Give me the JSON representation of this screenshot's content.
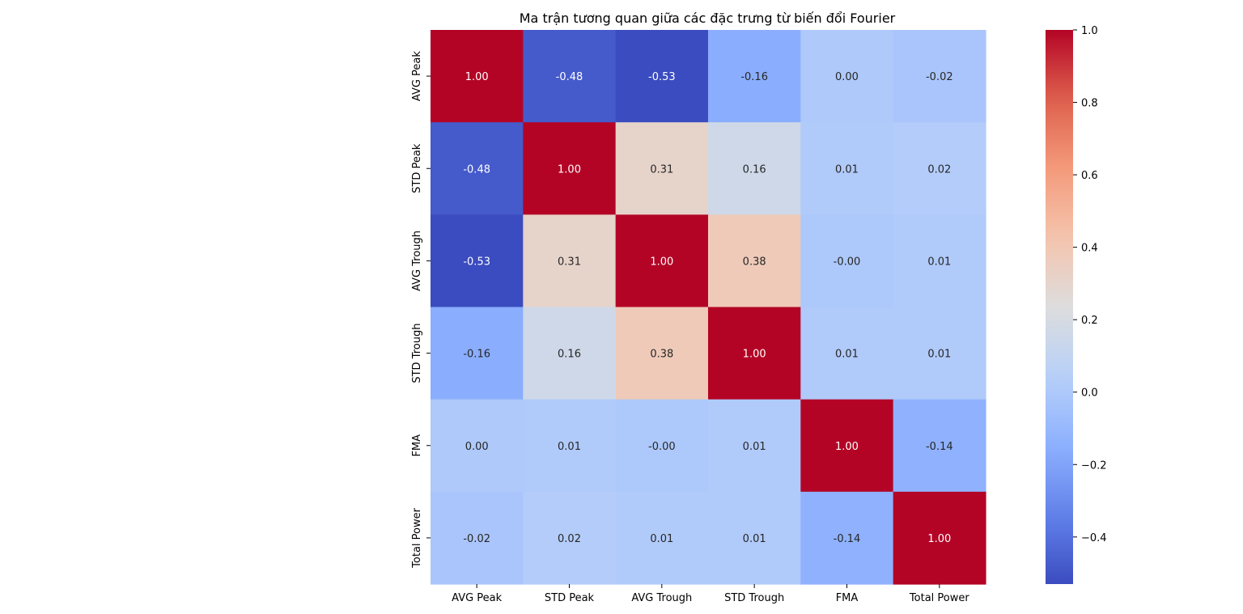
{
  "chart_data": {
    "type": "heatmap",
    "title": "Ma trận tương quan giữa các đặc trưng từ biến đổi Fourier",
    "x_labels": [
      "AVG Peak",
      "STD Peak",
      "AVG Trough",
      "STD Trough",
      "FMA",
      "Total Power"
    ],
    "y_labels": [
      "AVG Peak",
      "STD Peak",
      "AVG Trough",
      "STD Trough",
      "FMA",
      "Total Power"
    ],
    "values": [
      [
        1.0,
        -0.48,
        -0.53,
        -0.16,
        0.0,
        -0.02
      ],
      [
        -0.48,
        1.0,
        0.31,
        0.16,
        0.01,
        0.02
      ],
      [
        -0.53,
        0.31,
        1.0,
        0.38,
        -0.004,
        0.01
      ],
      [
        -0.16,
        0.16,
        0.38,
        1.0,
        0.01,
        0.01
      ],
      [
        0.0,
        0.01,
        -0.004,
        0.01,
        1.0,
        -0.14
      ],
      [
        -0.02,
        0.02,
        0.01,
        0.01,
        -0.14,
        1.0
      ]
    ],
    "cell_labels": [
      [
        "1.00",
        "-0.48",
        "-0.53",
        "-0.16",
        "0.00",
        "-0.02"
      ],
      [
        "-0.48",
        "1.00",
        "0.31",
        "0.16",
        "0.01",
        "0.02"
      ],
      [
        "-0.53",
        "0.31",
        "1.00",
        "0.38",
        "-0.00",
        "0.01"
      ],
      [
        "-0.16",
        "0.16",
        "0.38",
        "1.00",
        "0.01",
        "0.01"
      ],
      [
        "0.00",
        "0.01",
        "-0.00",
        "0.01",
        "1.00",
        "-0.14"
      ],
      [
        "-0.02",
        "0.02",
        "0.01",
        "0.01",
        "-0.14",
        "1.00"
      ]
    ],
    "colormap": "coolwarm",
    "vmin": -0.53,
    "vmax": 1.0,
    "colorbar_ticks": [
      1.0,
      0.8,
      0.6,
      0.4,
      0.2,
      0.0,
      -0.2,
      -0.4
    ],
    "colorbar_tick_labels": [
      "1.0",
      "0.8",
      "0.6",
      "0.4",
      "0.2",
      "0.0",
      "−0.2",
      "−0.4"
    ],
    "grid": false,
    "legend": "colorbar-right"
  }
}
